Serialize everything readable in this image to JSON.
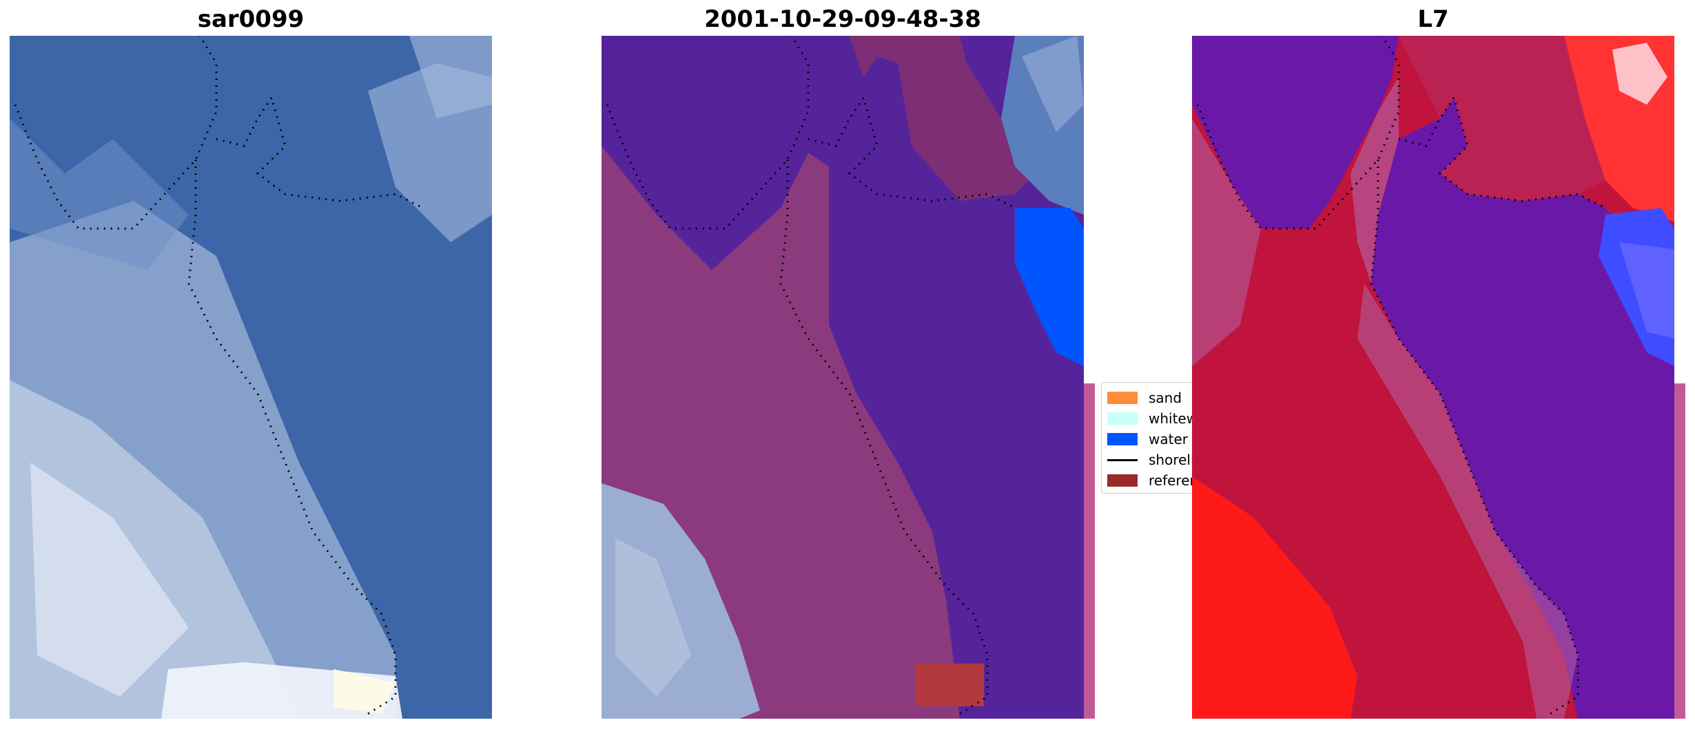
{
  "panels": [
    {
      "title": "sar0099"
    },
    {
      "title": "2001-10-29-09-48-38"
    },
    {
      "title": "L7"
    }
  ],
  "legend": {
    "items": [
      {
        "label": "sand",
        "color": "#ff8c3a",
        "kind": "patch"
      },
      {
        "label": "whitewater",
        "color": "#c8fff6",
        "kind": "patch"
      },
      {
        "label": "water",
        "color": "#0055ff",
        "kind": "patch"
      },
      {
        "label": "shoreline",
        "color": "#000000",
        "kind": "line"
      },
      {
        "label": "reference",
        "color": "#9a2a2a",
        "kind": "patch"
      }
    ]
  },
  "colors": {
    "water_blue": "#3c66a8",
    "whitewater": "#c9d6ea",
    "sand_overlay": "#7d2e74",
    "water_overlay": "#55249b",
    "red_index": "#c0143c",
    "purple_index": "#6a18a8"
  }
}
